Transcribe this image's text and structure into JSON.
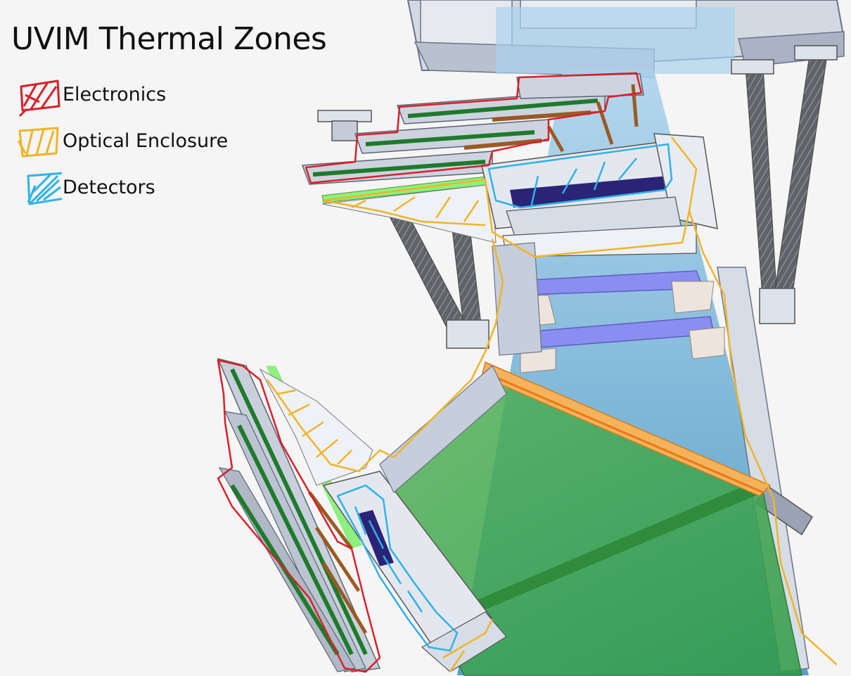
{
  "title": "UVIM Thermal Zones",
  "legend": [
    {
      "label": "Electronics",
      "color": "#d8202a"
    },
    {
      "label": "Optical Enclosure",
      "color": "#f0b429"
    },
    {
      "label": "Detectors",
      "color": "#2fb2e8"
    }
  ],
  "colors": {
    "structure": "#c9d1de",
    "structure_dark": "#8f99ab",
    "truss": "#6b6e73",
    "beam": "#8fc0e0",
    "green_volume": "#56b65a",
    "lens": "#8a8ef0",
    "orange_bar": "#f6b25a",
    "detector_plate": "#2a2477",
    "board_green": "#1f7a2c",
    "board_light_green": "#8ef07e",
    "cable": "#9a5a24"
  }
}
